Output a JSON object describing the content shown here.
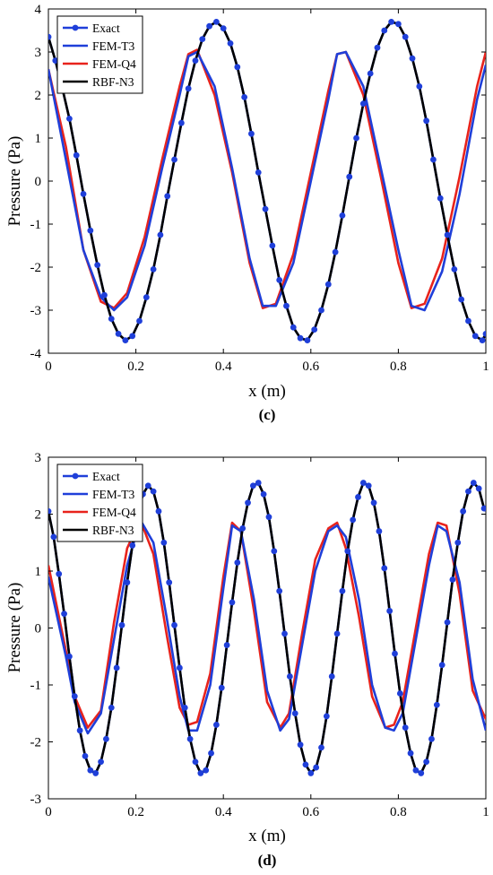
{
  "chart_data": [
    {
      "type": "line",
      "panel_label": "(c)",
      "xlabel": "x (m)",
      "ylabel": "Pressure (Pa)",
      "xlim": [
        0,
        1
      ],
      "ylim": [
        -4,
        4
      ],
      "xticks": [
        "0",
        "0.2",
        "0.4",
        "0.6",
        "0.8",
        "1"
      ],
      "yticks": [
        "4",
        "3",
        "2",
        "1",
        "0",
        "-1",
        "-2",
        "-3",
        "-4"
      ],
      "grid": false,
      "legend_position": "top-left",
      "series": [
        {
          "name": "Exact",
          "color": "#1f3fd9",
          "marker": "circle",
          "x": [
            0,
            0.016,
            0.032,
            0.048,
            0.064,
            0.08,
            0.096,
            0.112,
            0.128,
            0.144,
            0.16,
            0.176,
            0.192,
            0.208,
            0.224,
            0.24,
            0.256,
            0.272,
            0.288,
            0.304,
            0.32,
            0.336,
            0.352,
            0.368,
            0.384,
            0.4,
            0.416,
            0.432,
            0.448,
            0.464,
            0.48,
            0.496,
            0.512,
            0.528,
            0.544,
            0.56,
            0.576,
            0.592,
            0.608,
            0.624,
            0.64,
            0.656,
            0.672,
            0.688,
            0.704,
            0.72,
            0.736,
            0.752,
            0.768,
            0.784,
            0.8,
            0.816,
            0.832,
            0.848,
            0.864,
            0.88,
            0.896,
            0.912,
            0.928,
            0.944,
            0.96,
            0.976,
            0.992,
            1
          ],
          "y": [
            3.35,
            2.8,
            2.15,
            1.45,
            0.6,
            -0.3,
            -1.15,
            -1.95,
            -2.65,
            -3.2,
            -3.55,
            -3.7,
            -3.6,
            -3.25,
            -2.7,
            -2.05,
            -1.25,
            -0.35,
            0.5,
            1.35,
            2.15,
            2.8,
            3.3,
            3.6,
            3.7,
            3.55,
            3.2,
            2.65,
            1.95,
            1.1,
            0.2,
            -0.65,
            -1.5,
            -2.3,
            -2.9,
            -3.4,
            -3.65,
            -3.7,
            -3.45,
            -3.0,
            -2.4,
            -1.65,
            -0.8,
            0.1,
            1.0,
            1.8,
            2.5,
            3.1,
            3.5,
            3.7,
            3.65,
            3.35,
            2.85,
            2.2,
            1.4,
            0.5,
            -0.4,
            -1.25,
            -2.05,
            -2.75,
            -3.25,
            -3.6,
            -3.7,
            -3.55
          ]
        },
        {
          "name": "FEM-T3",
          "color": "#1f3fd9",
          "x": [
            0,
            0.04,
            0.08,
            0.12,
            0.15,
            0.18,
            0.22,
            0.26,
            0.3,
            0.32,
            0.34,
            0.38,
            0.42,
            0.46,
            0.49,
            0.52,
            0.56,
            0.6,
            0.64,
            0.66,
            0.68,
            0.72,
            0.76,
            0.8,
            0.83,
            0.86,
            0.9,
            0.94,
            0.98,
            1
          ],
          "y": [
            2.6,
            0.5,
            -1.6,
            -2.7,
            -3.0,
            -2.7,
            -1.5,
            0.3,
            2.0,
            2.9,
            3.0,
            2.2,
            0.3,
            -1.8,
            -2.9,
            -2.9,
            -1.9,
            0.0,
            1.9,
            2.95,
            3.0,
            2.2,
            0.3,
            -1.6,
            -2.9,
            -3.0,
            -2.1,
            -0.3,
            1.9,
            2.7
          ]
        },
        {
          "name": "FEM-Q4",
          "color": "#e8231c",
          "x": [
            0,
            0.04,
            0.08,
            0.12,
            0.15,
            0.18,
            0.22,
            0.26,
            0.3,
            0.32,
            0.34,
            0.38,
            0.42,
            0.46,
            0.49,
            0.52,
            0.56,
            0.6,
            0.64,
            0.66,
            0.68,
            0.72,
            0.76,
            0.8,
            0.83,
            0.86,
            0.9,
            0.94,
            0.98,
            1
          ],
          "y": [
            2.6,
            0.8,
            -1.6,
            -2.8,
            -2.95,
            -2.6,
            -1.3,
            0.5,
            2.2,
            2.95,
            3.05,
            2.0,
            0.2,
            -1.9,
            -2.95,
            -2.85,
            -1.7,
            0.2,
            2.1,
            2.95,
            3.0,
            2.0,
            0.1,
            -1.9,
            -2.95,
            -2.85,
            -1.8,
            0.1,
            2.2,
            3.0
          ]
        },
        {
          "name": "RBF-N3",
          "color": "#000000",
          "x": [
            0,
            0.016,
            0.032,
            0.048,
            0.064,
            0.08,
            0.096,
            0.112,
            0.128,
            0.144,
            0.16,
            0.176,
            0.192,
            0.208,
            0.224,
            0.24,
            0.256,
            0.272,
            0.288,
            0.304,
            0.32,
            0.336,
            0.352,
            0.368,
            0.384,
            0.4,
            0.416,
            0.432,
            0.448,
            0.464,
            0.48,
            0.496,
            0.512,
            0.528,
            0.544,
            0.56,
            0.576,
            0.592,
            0.608,
            0.624,
            0.64,
            0.656,
            0.672,
            0.688,
            0.704,
            0.72,
            0.736,
            0.752,
            0.768,
            0.784,
            0.8,
            0.816,
            0.832,
            0.848,
            0.864,
            0.88,
            0.896,
            0.912,
            0.928,
            0.944,
            0.96,
            0.976,
            0.992,
            1
          ],
          "y": [
            3.35,
            2.8,
            2.15,
            1.45,
            0.6,
            -0.3,
            -1.15,
            -1.95,
            -2.65,
            -3.2,
            -3.55,
            -3.7,
            -3.6,
            -3.25,
            -2.7,
            -2.05,
            -1.25,
            -0.35,
            0.5,
            1.35,
            2.15,
            2.8,
            3.3,
            3.6,
            3.7,
            3.55,
            3.2,
            2.65,
            1.95,
            1.1,
            0.2,
            -0.65,
            -1.5,
            -2.3,
            -2.9,
            -3.4,
            -3.65,
            -3.7,
            -3.45,
            -3.0,
            -2.4,
            -1.65,
            -0.8,
            0.1,
            1.0,
            1.8,
            2.5,
            3.1,
            3.5,
            3.7,
            3.65,
            3.35,
            2.85,
            2.2,
            1.4,
            0.5,
            -0.4,
            -1.25,
            -2.05,
            -2.75,
            -3.25,
            -3.6,
            -3.7,
            -3.55
          ]
        }
      ]
    },
    {
      "type": "line",
      "panel_label": "(d)",
      "xlabel": "x (m)",
      "ylabel": "Pressure (Pa)",
      "xlim": [
        0,
        1
      ],
      "ylim": [
        -3,
        3
      ],
      "xticks": [
        "0",
        "0.2",
        "0.4",
        "0.6",
        "0.8",
        "1"
      ],
      "yticks": [
        "3",
        "2",
        "1",
        "0",
        "-1",
        "-2",
        "-3"
      ],
      "grid": false,
      "legend_position": "top-left",
      "series": [
        {
          "name": "Exact",
          "color": "#1f3fd9",
          "marker": "circle",
          "x": [
            0,
            0.012,
            0.024,
            0.036,
            0.048,
            0.06,
            0.072,
            0.084,
            0.096,
            0.108,
            0.12,
            0.132,
            0.144,
            0.156,
            0.168,
            0.18,
            0.192,
            0.204,
            0.216,
            0.228,
            0.24,
            0.252,
            0.264,
            0.276,
            0.288,
            0.3,
            0.312,
            0.324,
            0.336,
            0.348,
            0.36,
            0.372,
            0.384,
            0.396,
            0.408,
            0.42,
            0.432,
            0.444,
            0.456,
            0.468,
            0.48,
            0.492,
            0.504,
            0.516,
            0.528,
            0.54,
            0.552,
            0.564,
            0.576,
            0.588,
            0.6,
            0.612,
            0.624,
            0.636,
            0.648,
            0.66,
            0.672,
            0.684,
            0.696,
            0.708,
            0.72,
            0.732,
            0.744,
            0.756,
            0.768,
            0.78,
            0.792,
            0.804,
            0.816,
            0.828,
            0.84,
            0.852,
            0.864,
            0.876,
            0.888,
            0.9,
            0.912,
            0.924,
            0.936,
            0.948,
            0.96,
            0.972,
            0.984,
            0.996
          ],
          "y": [
            2.05,
            1.6,
            0.95,
            0.25,
            -0.5,
            -1.2,
            -1.8,
            -2.25,
            -2.5,
            -2.55,
            -2.35,
            -1.95,
            -1.4,
            -0.7,
            0.05,
            0.8,
            1.45,
            2.0,
            2.35,
            2.5,
            2.4,
            2.05,
            1.5,
            0.8,
            0.05,
            -0.7,
            -1.4,
            -1.95,
            -2.35,
            -2.55,
            -2.5,
            -2.2,
            -1.7,
            -1.05,
            -0.3,
            0.45,
            1.15,
            1.75,
            2.2,
            2.5,
            2.55,
            2.35,
            1.95,
            1.35,
            0.65,
            -0.1,
            -0.85,
            -1.5,
            -2.05,
            -2.4,
            -2.55,
            -2.45,
            -2.1,
            -1.55,
            -0.85,
            -0.1,
            0.65,
            1.35,
            1.9,
            2.3,
            2.55,
            2.5,
            2.2,
            1.7,
            1.05,
            0.3,
            -0.45,
            -1.15,
            -1.75,
            -2.2,
            -2.5,
            -2.55,
            -2.35,
            -1.95,
            -1.35,
            -0.65,
            0.1,
            0.85,
            1.5,
            2.05,
            2.4,
            2.55,
            2.45,
            2.1
          ]
        },
        {
          "name": "FEM-T3",
          "color": "#1f3fd9",
          "x": [
            0,
            0.04,
            0.06,
            0.09,
            0.12,
            0.15,
            0.18,
            0.21,
            0.24,
            0.27,
            0.3,
            0.32,
            0.34,
            0.37,
            0.4,
            0.42,
            0.44,
            0.47,
            0.5,
            0.53,
            0.55,
            0.58,
            0.61,
            0.64,
            0.66,
            0.68,
            0.71,
            0.74,
            0.77,
            0.79,
            0.81,
            0.84,
            0.87,
            0.89,
            0.91,
            0.94,
            0.97,
            1
          ],
          "y": [
            0.9,
            -0.5,
            -1.3,
            -1.85,
            -1.5,
            -0.2,
            1.1,
            1.9,
            1.5,
            0.2,
            -1.2,
            -1.8,
            -1.8,
            -1.0,
            0.7,
            1.8,
            1.7,
            0.5,
            -1.1,
            -1.8,
            -1.6,
            -0.3,
            1.0,
            1.7,
            1.8,
            1.6,
            0.5,
            -1.0,
            -1.75,
            -1.8,
            -1.5,
            -0.2,
            1.1,
            1.8,
            1.7,
            0.8,
            -0.9,
            -1.8
          ]
        },
        {
          "name": "FEM-Q4",
          "color": "#e8231c",
          "x": [
            0,
            0.04,
            0.06,
            0.09,
            0.12,
            0.15,
            0.18,
            0.21,
            0.24,
            0.27,
            0.3,
            0.32,
            0.34,
            0.37,
            0.4,
            0.42,
            0.44,
            0.47,
            0.5,
            0.53,
            0.55,
            0.58,
            0.61,
            0.64,
            0.66,
            0.68,
            0.71,
            0.74,
            0.77,
            0.79,
            0.81,
            0.84,
            0.87,
            0.89,
            0.91,
            0.94,
            0.97,
            1
          ],
          "y": [
            1.1,
            -0.4,
            -1.2,
            -1.75,
            -1.45,
            0.1,
            1.4,
            1.9,
            1.3,
            -0.1,
            -1.4,
            -1.7,
            -1.65,
            -0.8,
            0.9,
            1.85,
            1.7,
            0.3,
            -1.3,
            -1.75,
            -1.5,
            -0.1,
            1.2,
            1.75,
            1.85,
            1.4,
            0.2,
            -1.2,
            -1.75,
            -1.7,
            -1.3,
            0.0,
            1.3,
            1.85,
            1.8,
            0.6,
            -1.1,
            -1.6
          ]
        },
        {
          "name": "RBF-N3",
          "color": "#000000",
          "x": [
            0,
            0.012,
            0.024,
            0.036,
            0.048,
            0.06,
            0.072,
            0.084,
            0.096,
            0.108,
            0.12,
            0.132,
            0.144,
            0.156,
            0.168,
            0.18,
            0.192,
            0.204,
            0.216,
            0.228,
            0.24,
            0.252,
            0.264,
            0.276,
            0.288,
            0.3,
            0.312,
            0.324,
            0.336,
            0.348,
            0.36,
            0.372,
            0.384,
            0.396,
            0.408,
            0.42,
            0.432,
            0.444,
            0.456,
            0.468,
            0.48,
            0.492,
            0.504,
            0.516,
            0.528,
            0.54,
            0.552,
            0.564,
            0.576,
            0.588,
            0.6,
            0.612,
            0.624,
            0.636,
            0.648,
            0.66,
            0.672,
            0.684,
            0.696,
            0.708,
            0.72,
            0.732,
            0.744,
            0.756,
            0.768,
            0.78,
            0.792,
            0.804,
            0.816,
            0.828,
            0.84,
            0.852,
            0.864,
            0.876,
            0.888,
            0.9,
            0.912,
            0.924,
            0.936,
            0.948,
            0.96,
            0.972,
            0.984,
            0.996
          ],
          "y": [
            2.05,
            1.6,
            0.95,
            0.25,
            -0.5,
            -1.2,
            -1.8,
            -2.25,
            -2.5,
            -2.55,
            -2.35,
            -1.95,
            -1.4,
            -0.7,
            0.05,
            0.8,
            1.45,
            2.0,
            2.35,
            2.5,
            2.4,
            2.05,
            1.5,
            0.8,
            0.05,
            -0.7,
            -1.4,
            -1.95,
            -2.35,
            -2.55,
            -2.5,
            -2.2,
            -1.7,
            -1.05,
            -0.3,
            0.45,
            1.15,
            1.75,
            2.2,
            2.5,
            2.55,
            2.35,
            1.95,
            1.35,
            0.65,
            -0.1,
            -0.85,
            -1.5,
            -2.05,
            -2.4,
            -2.55,
            -2.45,
            -2.1,
            -1.55,
            -0.85,
            -0.1,
            0.65,
            1.35,
            1.9,
            2.3,
            2.55,
            2.5,
            2.2,
            1.7,
            1.05,
            0.3,
            -0.45,
            -1.15,
            -1.75,
            -2.2,
            -2.5,
            -2.55,
            -2.35,
            -1.95,
            -1.35,
            -0.65,
            0.1,
            0.85,
            1.5,
            2.05,
            2.4,
            2.55,
            2.45,
            2.1
          ]
        }
      ]
    }
  ]
}
